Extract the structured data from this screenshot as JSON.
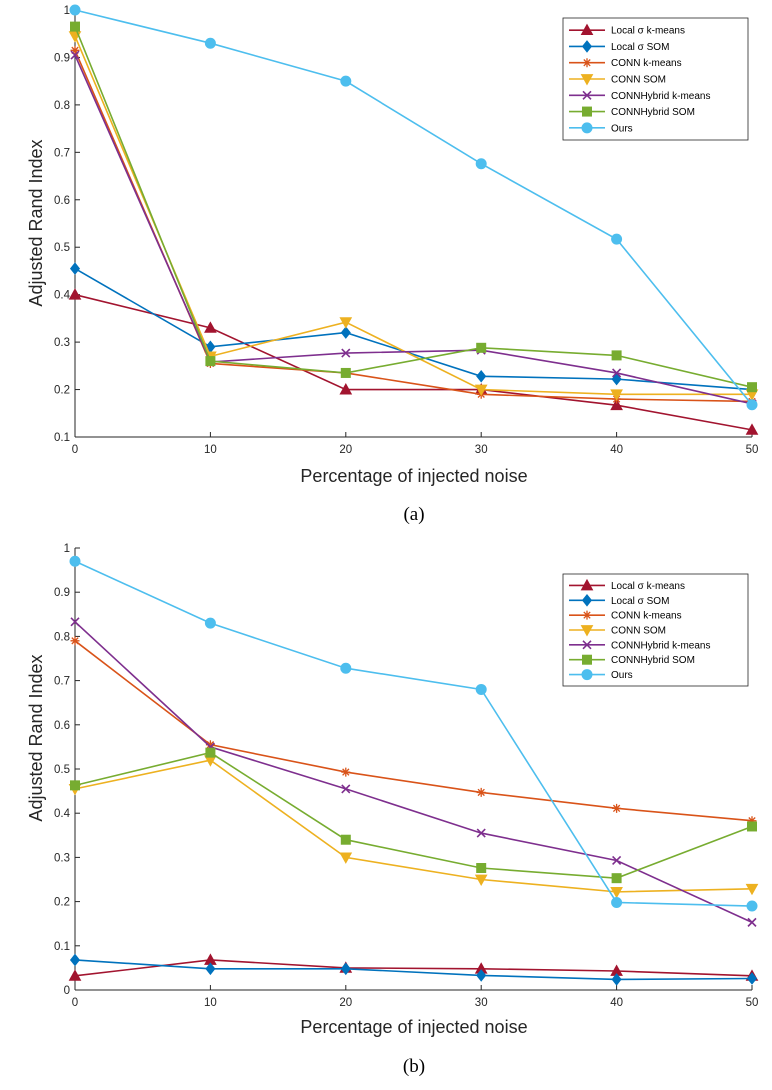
{
  "chart_data": [
    {
      "type": "line",
      "panel": "a",
      "caption": "(a)",
      "xlabel": "Percentage of injected noise",
      "ylabel": "Adjusted Rand Index",
      "x": [
        0,
        10,
        20,
        30,
        40,
        50
      ],
      "xticks": [
        "0",
        "10",
        "20",
        "30",
        "40",
        "50"
      ],
      "yticks": [
        "0.1",
        "0.2",
        "0.3",
        "0.4",
        "0.5",
        "0.6",
        "0.7",
        "0.8",
        "0.9",
        "1"
      ],
      "xlim": [
        0,
        50
      ],
      "ylim": [
        0.1,
        1.0
      ],
      "legend_position": "top-right",
      "series": [
        {
          "name": "Local σ k-means",
          "color": "#A2142F",
          "marker": "triangle-up",
          "values": [
            0.4,
            0.33,
            0.2,
            0.2,
            0.167,
            0.115
          ]
        },
        {
          "name": "Local σ SOM",
          "color": "#0072BD",
          "marker": "diamond",
          "values": [
            0.455,
            0.29,
            0.32,
            0.228,
            0.222,
            0.2
          ]
        },
        {
          "name": "CONN k-means",
          "color": "#D95319",
          "marker": "asterisk",
          "values": [
            0.915,
            0.255,
            0.235,
            0.19,
            0.18,
            0.175
          ]
        },
        {
          "name": "CONN SOM",
          "color": "#EDB120",
          "marker": "triangle-down",
          "values": [
            0.945,
            0.27,
            0.342,
            0.2,
            0.19,
            0.19
          ]
        },
        {
          "name": "CONNHybrid k-means",
          "color": "#7E2F8E",
          "marker": "x",
          "values": [
            0.905,
            0.258,
            0.277,
            0.283,
            0.235,
            0.17
          ]
        },
        {
          "name": "CONNHybrid SOM",
          "color": "#77AC30",
          "marker": "square",
          "values": [
            0.965,
            0.26,
            0.235,
            0.288,
            0.272,
            0.205
          ]
        },
        {
          "name": "Ours",
          "color": "#4DBEEE",
          "marker": "circle",
          "values": [
            1.0,
            0.93,
            0.85,
            0.676,
            0.517,
            0.168
          ]
        }
      ]
    },
    {
      "type": "line",
      "panel": "b",
      "caption": "(b)",
      "xlabel": "Percentage of injected noise",
      "ylabel": "Adjusted Rand Index",
      "x": [
        0,
        10,
        20,
        30,
        40,
        50
      ],
      "xticks": [
        "0",
        "10",
        "20",
        "30",
        "40",
        "50"
      ],
      "yticks": [
        "0",
        "0.1",
        "0.2",
        "0.3",
        "0.4",
        "0.5",
        "0.6",
        "0.7",
        "0.8",
        "0.9",
        "1"
      ],
      "xlim": [
        0,
        50
      ],
      "ylim": [
        0,
        1.0
      ],
      "legend_position": "top-right",
      "series": [
        {
          "name": "Local σ k-means",
          "color": "#A2142F",
          "marker": "triangle-up",
          "values": [
            0.032,
            0.068,
            0.05,
            0.048,
            0.043,
            0.032
          ]
        },
        {
          "name": "Local σ SOM",
          "color": "#0072BD",
          "marker": "diamond",
          "values": [
            0.068,
            0.048,
            0.048,
            0.033,
            0.024,
            0.026
          ]
        },
        {
          "name": "CONN k-means",
          "color": "#D95319",
          "marker": "asterisk",
          "values": [
            0.79,
            0.555,
            0.493,
            0.447,
            0.411,
            0.383
          ]
        },
        {
          "name": "CONN SOM",
          "color": "#EDB120",
          "marker": "triangle-down",
          "values": [
            0.455,
            0.52,
            0.3,
            0.25,
            0.222,
            0.229
          ]
        },
        {
          "name": "CONNHybrid k-means",
          "color": "#7E2F8E",
          "marker": "x",
          "values": [
            0.833,
            0.55,
            0.455,
            0.355,
            0.293,
            0.153
          ]
        },
        {
          "name": "CONNHybrid SOM",
          "color": "#77AC30",
          "marker": "square",
          "values": [
            0.463,
            0.537,
            0.34,
            0.276,
            0.253,
            0.37
          ]
        },
        {
          "name": "Ours",
          "color": "#4DBEEE",
          "marker": "circle",
          "values": [
            0.97,
            0.83,
            0.728,
            0.68,
            0.198,
            0.19
          ]
        }
      ]
    }
  ]
}
